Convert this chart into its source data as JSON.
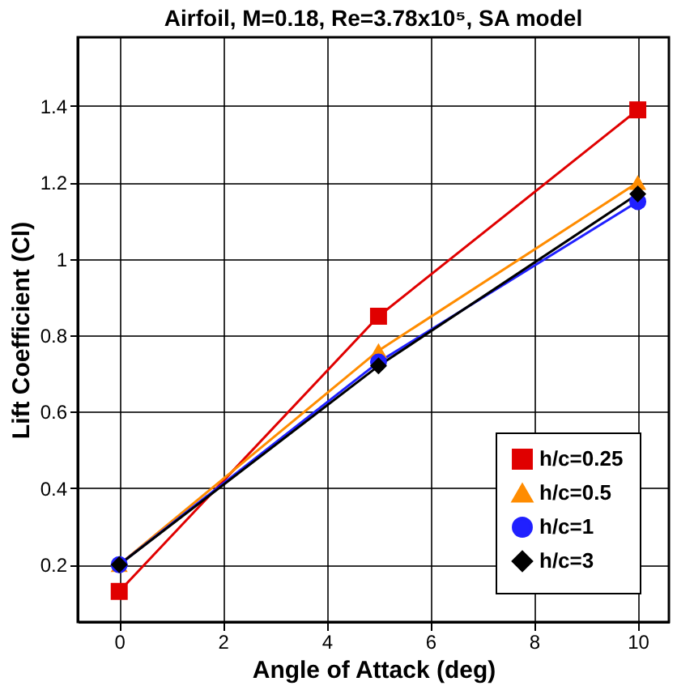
{
  "chart_data": {
    "type": "line",
    "title": "Airfoil, M=0.18, Re=3.78x10⁵, SA model",
    "xlabel": "Angle of Attack (deg)",
    "ylabel": "Lift Coefficient (Cl)",
    "x": [
      0,
      5,
      10
    ],
    "series": [
      {
        "name": "h/c=0.25",
        "color": "#e00000",
        "marker": "square",
        "values": [
          0.13,
          0.85,
          1.39
        ]
      },
      {
        "name": "h/c=0.5",
        "color": "#ff8c00",
        "marker": "triangle",
        "values": [
          0.2,
          0.76,
          1.2
        ]
      },
      {
        "name": "h/c=1",
        "color": "#2020ff",
        "marker": "circle",
        "values": [
          0.2,
          0.73,
          1.15
        ]
      },
      {
        "name": "h/c=3",
        "color": "#000000",
        "marker": "diamond",
        "values": [
          0.2,
          0.72,
          1.17
        ]
      }
    ],
    "xlim": [
      -0.8,
      10.6
    ],
    "xticks": [
      0,
      2,
      4,
      6,
      8,
      10
    ],
    "ylim": [
      0.05,
      1.58
    ],
    "yticks": [
      0.2,
      0.4,
      0.6,
      0.8,
      1,
      1.2,
      1.4
    ],
    "grid": true,
    "legend": "bottom right",
    "line_style": "solid"
  }
}
